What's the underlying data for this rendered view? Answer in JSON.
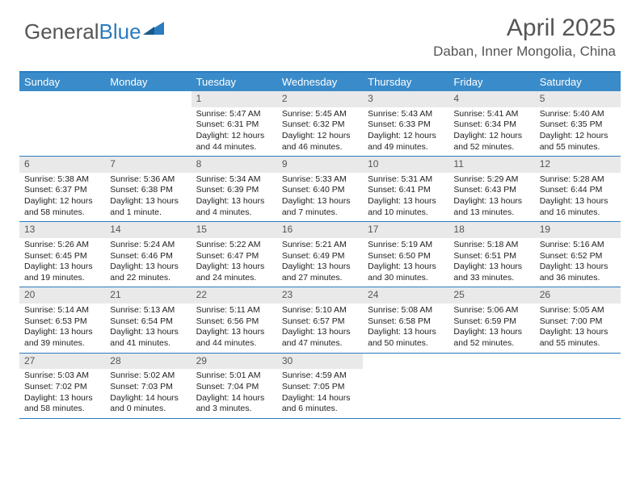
{
  "logo": {
    "text_general": "General",
    "text_blue": "Blue"
  },
  "title": "April 2025",
  "location": "Daban, Inner Mongolia, China",
  "colors": {
    "header_bg": "#3a8bc9",
    "border": "#2b7bbf",
    "daynum_bg": "#e9e9e9",
    "text_gray": "#555555"
  },
  "day_names": [
    "Sunday",
    "Monday",
    "Tuesday",
    "Wednesday",
    "Thursday",
    "Friday",
    "Saturday"
  ],
  "weeks": [
    [
      null,
      null,
      {
        "n": "1",
        "sr": "5:47 AM",
        "ss": "6:31 PM",
        "dl": "12 hours and 44 minutes."
      },
      {
        "n": "2",
        "sr": "5:45 AM",
        "ss": "6:32 PM",
        "dl": "12 hours and 46 minutes."
      },
      {
        "n": "3",
        "sr": "5:43 AM",
        "ss": "6:33 PM",
        "dl": "12 hours and 49 minutes."
      },
      {
        "n": "4",
        "sr": "5:41 AM",
        "ss": "6:34 PM",
        "dl": "12 hours and 52 minutes."
      },
      {
        "n": "5",
        "sr": "5:40 AM",
        "ss": "6:35 PM",
        "dl": "12 hours and 55 minutes."
      }
    ],
    [
      {
        "n": "6",
        "sr": "5:38 AM",
        "ss": "6:37 PM",
        "dl": "12 hours and 58 minutes."
      },
      {
        "n": "7",
        "sr": "5:36 AM",
        "ss": "6:38 PM",
        "dl": "13 hours and 1 minute."
      },
      {
        "n": "8",
        "sr": "5:34 AM",
        "ss": "6:39 PM",
        "dl": "13 hours and 4 minutes."
      },
      {
        "n": "9",
        "sr": "5:33 AM",
        "ss": "6:40 PM",
        "dl": "13 hours and 7 minutes."
      },
      {
        "n": "10",
        "sr": "5:31 AM",
        "ss": "6:41 PM",
        "dl": "13 hours and 10 minutes."
      },
      {
        "n": "11",
        "sr": "5:29 AM",
        "ss": "6:43 PM",
        "dl": "13 hours and 13 minutes."
      },
      {
        "n": "12",
        "sr": "5:28 AM",
        "ss": "6:44 PM",
        "dl": "13 hours and 16 minutes."
      }
    ],
    [
      {
        "n": "13",
        "sr": "5:26 AM",
        "ss": "6:45 PM",
        "dl": "13 hours and 19 minutes."
      },
      {
        "n": "14",
        "sr": "5:24 AM",
        "ss": "6:46 PM",
        "dl": "13 hours and 22 minutes."
      },
      {
        "n": "15",
        "sr": "5:22 AM",
        "ss": "6:47 PM",
        "dl": "13 hours and 24 minutes."
      },
      {
        "n": "16",
        "sr": "5:21 AM",
        "ss": "6:49 PM",
        "dl": "13 hours and 27 minutes."
      },
      {
        "n": "17",
        "sr": "5:19 AM",
        "ss": "6:50 PM",
        "dl": "13 hours and 30 minutes."
      },
      {
        "n": "18",
        "sr": "5:18 AM",
        "ss": "6:51 PM",
        "dl": "13 hours and 33 minutes."
      },
      {
        "n": "19",
        "sr": "5:16 AM",
        "ss": "6:52 PM",
        "dl": "13 hours and 36 minutes."
      }
    ],
    [
      {
        "n": "20",
        "sr": "5:14 AM",
        "ss": "6:53 PM",
        "dl": "13 hours and 39 minutes."
      },
      {
        "n": "21",
        "sr": "5:13 AM",
        "ss": "6:54 PM",
        "dl": "13 hours and 41 minutes."
      },
      {
        "n": "22",
        "sr": "5:11 AM",
        "ss": "6:56 PM",
        "dl": "13 hours and 44 minutes."
      },
      {
        "n": "23",
        "sr": "5:10 AM",
        "ss": "6:57 PM",
        "dl": "13 hours and 47 minutes."
      },
      {
        "n": "24",
        "sr": "5:08 AM",
        "ss": "6:58 PM",
        "dl": "13 hours and 50 minutes."
      },
      {
        "n": "25",
        "sr": "5:06 AM",
        "ss": "6:59 PM",
        "dl": "13 hours and 52 minutes."
      },
      {
        "n": "26",
        "sr": "5:05 AM",
        "ss": "7:00 PM",
        "dl": "13 hours and 55 minutes."
      }
    ],
    [
      {
        "n": "27",
        "sr": "5:03 AM",
        "ss": "7:02 PM",
        "dl": "13 hours and 58 minutes."
      },
      {
        "n": "28",
        "sr": "5:02 AM",
        "ss": "7:03 PM",
        "dl": "14 hours and 0 minutes."
      },
      {
        "n": "29",
        "sr": "5:01 AM",
        "ss": "7:04 PM",
        "dl": "14 hours and 3 minutes."
      },
      {
        "n": "30",
        "sr": "4:59 AM",
        "ss": "7:05 PM",
        "dl": "14 hours and 6 minutes."
      },
      null,
      null,
      null
    ]
  ],
  "labels": {
    "sunrise": "Sunrise: ",
    "sunset": "Sunset: ",
    "daylight": "Daylight: "
  }
}
